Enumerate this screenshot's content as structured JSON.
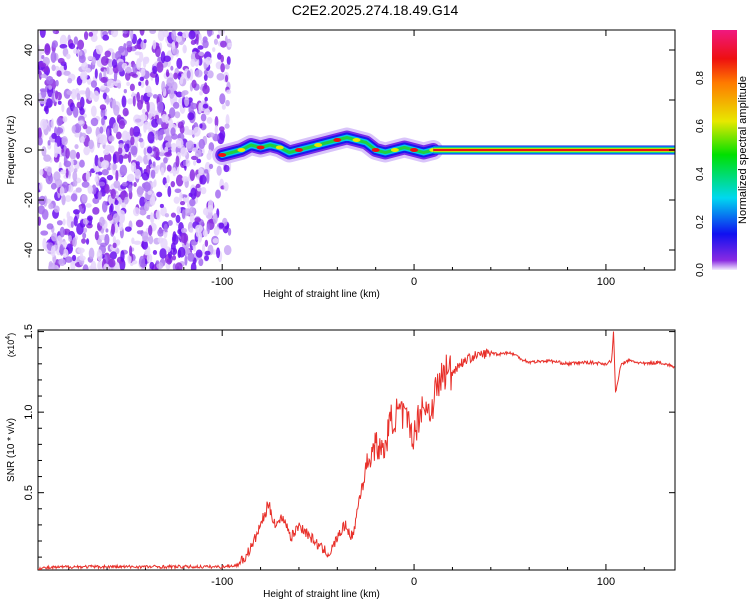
{
  "chart_data": [
    {
      "type": "heatmap",
      "title": "C2E2.2025.274.18.49.G14",
      "xlabel": "Height of straight line (km)",
      "ylabel": "Frequency (Hz)",
      "xlim": [
        -196,
        136
      ],
      "ylim": [
        -48,
        48
      ],
      "xticks": [
        "-100",
        "0",
        "100"
      ],
      "xtick_values": [
        -100,
        0,
        100
      ],
      "yticks": [
        "-40",
        "-20",
        "0",
        "20",
        "40"
      ],
      "ytick_values": [
        -40,
        -20,
        0,
        20,
        40
      ],
      "colorbar": {
        "label": "Normalized spectral amplitude",
        "ticks": [
          "0.0",
          "0.2",
          "0.4",
          "0.6",
          "0.8"
        ],
        "tick_values": [
          0,
          0.2,
          0.4,
          0.6,
          0.8
        ],
        "range": [
          0,
          1
        ]
      },
      "noise_region": {
        "x_range": [
          -196,
          -100
        ],
        "freq_range": [
          -48,
          48
        ]
      },
      "ridge": {
        "x": [
          -100,
          -95,
          -90,
          -85,
          -80,
          -75,
          -70,
          -65,
          -60,
          -55,
          -50,
          -45,
          -40,
          -35,
          -30,
          -25,
          -20,
          -15,
          -10,
          -5,
          0,
          5,
          10
        ],
        "freq": [
          -2,
          -1,
          0,
          2,
          1,
          2,
          1,
          -1,
          0,
          1,
          2,
          3,
          4,
          5,
          4,
          3,
          0,
          -1,
          0,
          1,
          0,
          -1,
          0
        ]
      },
      "steady_line": {
        "x_range": [
          10,
          136
        ],
        "freq": 0
      }
    },
    {
      "type": "line",
      "xlabel": "Height of straight line (km)",
      "ylabel": "SNR (10 * v/v)",
      "y_multiplier": "(x10",
      "y_multiplier_exp": "4",
      "xlim": [
        -196,
        136
      ],
      "ylim": [
        0.02,
        1.51
      ],
      "xticks": [
        "-100",
        "0",
        "100"
      ],
      "xtick_values": [
        -100,
        0,
        100
      ],
      "yticks": [
        "0.5",
        "1.0",
        "1.5"
      ],
      "ytick_values": [
        0.5,
        1.0,
        1.5
      ],
      "series": [
        {
          "name": "SNR",
          "color": "#e8302a",
          "x": [
            -196,
            -180,
            -160,
            -140,
            -120,
            -100,
            -92,
            -88,
            -84,
            -80,
            -76,
            -72,
            -68,
            -64,
            -60,
            -56,
            -52,
            -48,
            -44,
            -40,
            -36,
            -32,
            -28,
            -24,
            -20,
            -16,
            -12,
            -8,
            -4,
            0,
            4,
            8,
            12,
            16,
            20,
            24,
            28,
            32,
            36,
            40,
            44,
            48,
            52,
            56,
            60,
            70,
            80,
            90,
            100,
            103,
            104,
            105,
            108,
            112,
            120,
            128,
            136
          ],
          "y": [
            0.03,
            0.04,
            0.04,
            0.04,
            0.04,
            0.04,
            0.05,
            0.1,
            0.18,
            0.3,
            0.42,
            0.3,
            0.35,
            0.22,
            0.3,
            0.25,
            0.2,
            0.15,
            0.12,
            0.22,
            0.3,
            0.22,
            0.5,
            0.7,
            0.8,
            0.75,
            0.95,
            1.0,
            0.95,
            0.85,
            1.05,
            1.0,
            1.15,
            1.25,
            1.25,
            1.3,
            1.33,
            1.35,
            1.36,
            1.37,
            1.36,
            1.37,
            1.36,
            1.33,
            1.31,
            1.32,
            1.3,
            1.31,
            1.3,
            1.32,
            1.5,
            1.12,
            1.3,
            1.32,
            1.3,
            1.31,
            1.28
          ]
        }
      ]
    }
  ]
}
